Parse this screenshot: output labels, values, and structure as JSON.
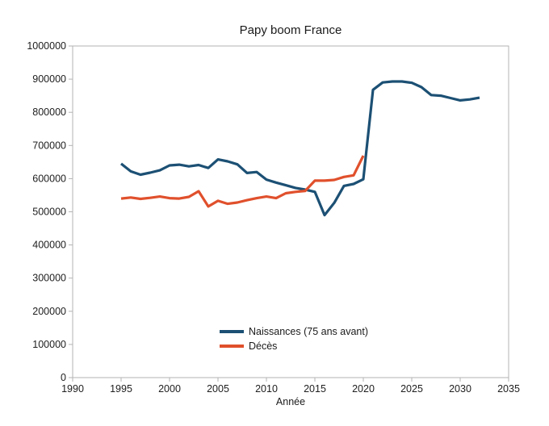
{
  "window": {
    "background": "#ffffff"
  },
  "chart_data": {
    "type": "line",
    "title": "Papy boom France",
    "xlabel": "Année",
    "ylabel": "",
    "xlim": [
      1990,
      2035
    ],
    "ylim": [
      0,
      1000000
    ],
    "x_ticks": [
      1990,
      1995,
      2000,
      2005,
      2010,
      2015,
      2020,
      2025,
      2030,
      2035
    ],
    "y_ticks": [
      0,
      100000,
      200000,
      300000,
      400000,
      500000,
      600000,
      700000,
      800000,
      900000,
      1000000
    ],
    "grid": false,
    "legend_position": "inside-bottom-center",
    "series": [
      {
        "name": "Naissances (75 ans avant)",
        "color": "#1c5074",
        "x": [
          1995,
          1996,
          1997,
          1998,
          1999,
          2000,
          2001,
          2002,
          2003,
          2004,
          2005,
          2006,
          2007,
          2008,
          2009,
          2010,
          2011,
          2012,
          2013,
          2014,
          2015,
          2016,
          2017,
          2018,
          2019,
          2020,
          2021,
          2022,
          2023,
          2024,
          2025,
          2026,
          2027,
          2028,
          2029,
          2030,
          2031,
          2032
        ],
        "values": [
          645000,
          622000,
          612000,
          618000,
          625000,
          640000,
          642000,
          637000,
          641000,
          632000,
          658000,
          652000,
          643000,
          617000,
          620000,
          597000,
          588000,
          580000,
          572000,
          567000,
          560000,
          490000,
          527000,
          578000,
          584000,
          598000,
          868000,
          890000,
          893000,
          893000,
          889000,
          876000,
          852000,
          850000,
          843000,
          836000,
          839000,
          844000
        ]
      },
      {
        "name": "Décès",
        "color": "#e0502c",
        "x": [
          1995,
          1996,
          1997,
          1998,
          1999,
          2000,
          2001,
          2002,
          2003,
          2004,
          2005,
          2006,
          2007,
          2008,
          2009,
          2010,
          2011,
          2012,
          2013,
          2014,
          2015,
          2016,
          2017,
          2018,
          2019,
          2020
        ],
        "values": [
          540000,
          543000,
          539000,
          542000,
          546000,
          541000,
          540000,
          545000,
          562000,
          516000,
          533000,
          524000,
          528000,
          535000,
          541000,
          546000,
          541000,
          556000,
          560000,
          563000,
          594000,
          594000,
          596000,
          605000,
          610000,
          669000
        ]
      }
    ],
    "axis_color": "#b3b3b3",
    "text_color": "#1a1a1a"
  }
}
